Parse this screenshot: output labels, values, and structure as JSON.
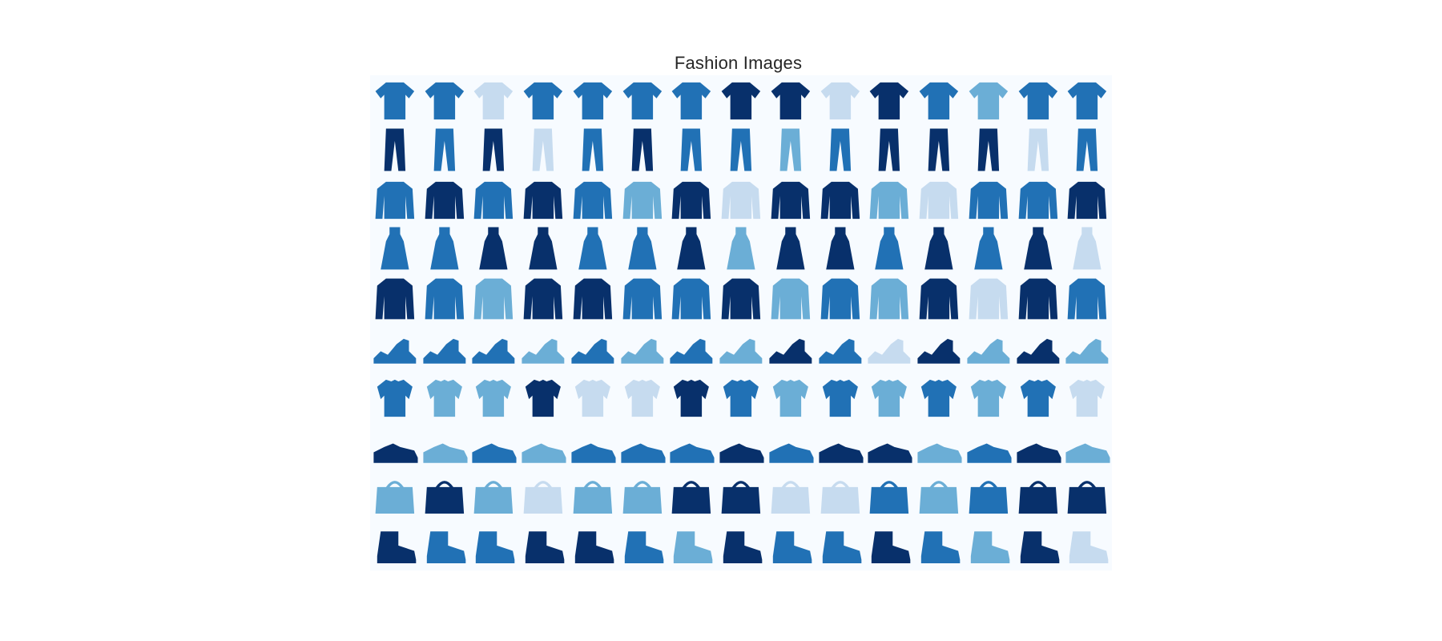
{
  "title": "Fashion Images",
  "grid": {
    "rows": 10,
    "cols": 15
  },
  "colors": {
    "background": "#f7fbff",
    "dark": "#08306b",
    "mid": "#2171b5",
    "light": "#6baed6",
    "pale": "#c6dbef"
  },
  "rows": [
    {
      "category": "tshirt",
      "shades": [
        "mid",
        "mid",
        "pale",
        "mid",
        "mid",
        "mid",
        "mid",
        "dark",
        "dark",
        "pale",
        "dark",
        "mid",
        "light",
        "mid",
        "mid"
      ]
    },
    {
      "category": "trouser",
      "shades": [
        "dark",
        "mid",
        "dark",
        "pale",
        "mid",
        "dark",
        "mid",
        "mid",
        "light",
        "mid",
        "dark",
        "dark",
        "dark",
        "pale",
        "mid"
      ]
    },
    {
      "category": "pullover",
      "shades": [
        "mid",
        "dark",
        "mid",
        "dark",
        "mid",
        "light",
        "dark",
        "pale",
        "dark",
        "dark",
        "light",
        "pale",
        "mid",
        "mid",
        "dark"
      ]
    },
    {
      "category": "dress",
      "shades": [
        "mid",
        "mid",
        "dark",
        "dark",
        "mid",
        "mid",
        "dark",
        "light",
        "dark",
        "dark",
        "mid",
        "dark",
        "mid",
        "dark",
        "pale"
      ]
    },
    {
      "category": "coat",
      "shades": [
        "dark",
        "mid",
        "light",
        "dark",
        "dark",
        "mid",
        "mid",
        "dark",
        "light",
        "mid",
        "light",
        "dark",
        "pale",
        "dark",
        "mid"
      ]
    },
    {
      "category": "sandal",
      "shades": [
        "mid",
        "mid",
        "mid",
        "light",
        "mid",
        "light",
        "mid",
        "light",
        "dark",
        "mid",
        "pale",
        "dark",
        "light",
        "dark",
        "light"
      ]
    },
    {
      "category": "shirt",
      "shades": [
        "mid",
        "light",
        "light",
        "dark",
        "pale",
        "pale",
        "dark",
        "mid",
        "light",
        "mid",
        "light",
        "mid",
        "light",
        "mid",
        "pale"
      ]
    },
    {
      "category": "sneaker",
      "shades": [
        "dark",
        "light",
        "mid",
        "light",
        "mid",
        "mid",
        "mid",
        "dark",
        "mid",
        "dark",
        "dark",
        "light",
        "mid",
        "dark",
        "light"
      ]
    },
    {
      "category": "bag",
      "shades": [
        "light",
        "dark",
        "light",
        "pale",
        "light",
        "light",
        "dark",
        "dark",
        "pale",
        "pale",
        "mid",
        "light",
        "mid",
        "dark",
        "dark"
      ]
    },
    {
      "category": "boot",
      "shades": [
        "dark",
        "mid",
        "mid",
        "dark",
        "dark",
        "mid",
        "light",
        "dark",
        "mid",
        "mid",
        "dark",
        "mid",
        "light",
        "dark",
        "pale"
      ]
    }
  ]
}
